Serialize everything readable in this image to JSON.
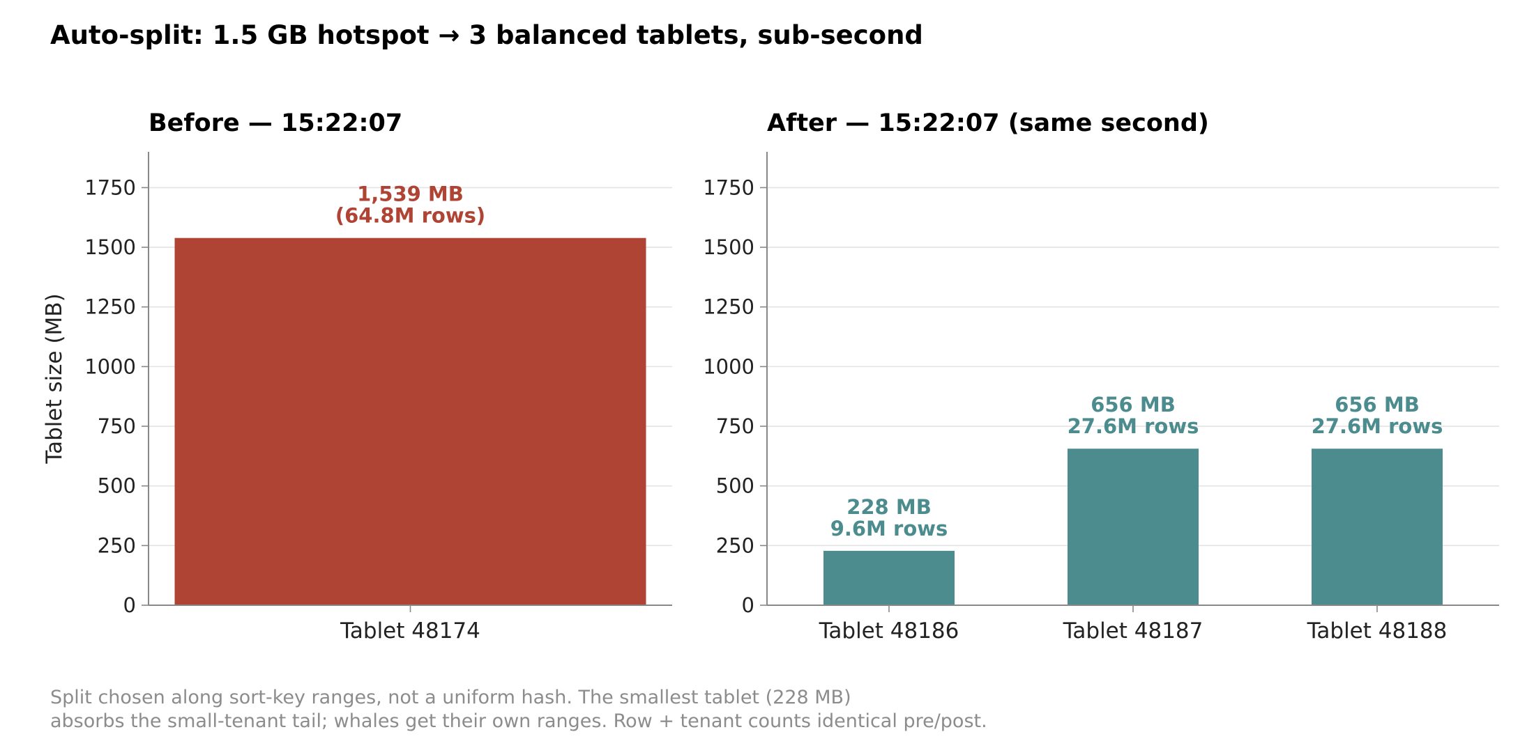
{
  "title": "Auto-split: 1.5 GB hotspot → 3 balanced tablets, sub-second",
  "footnote": [
    "Split chosen along sort-key ranges, not a uniform hash. The smallest tablet (228 MB)",
    "absorbs the small-tenant tail; whales get their own ranges. Row + tenant counts identical pre/post."
  ],
  "colors": {
    "before": "#b04434",
    "after": "#4c8c8e",
    "grid": "#e3e3e3",
    "axis": "#888888",
    "footnote": "#8c8c8c"
  },
  "chart_data": [
    {
      "type": "bar",
      "title": "Before — 15:22:07",
      "ylabel": "Tablet size (MB)",
      "ylim": [
        0,
        1900
      ],
      "yticks": [
        0,
        250,
        500,
        750,
        1000,
        1250,
        1500,
        1750
      ],
      "grid": true,
      "categories": [
        "Tablet 48174"
      ],
      "values": [
        1539
      ],
      "labels": [
        [
          "1,539 MB",
          "(64.8M rows)"
        ]
      ],
      "color": "#b04434"
    },
    {
      "type": "bar",
      "title": "After — 15:22:07 (same second)",
      "ylabel": "",
      "ylim": [
        0,
        1900
      ],
      "yticks": [
        0,
        250,
        500,
        750,
        1000,
        1250,
        1500,
        1750
      ],
      "grid": true,
      "categories": [
        "Tablet 48186",
        "Tablet 48187",
        "Tablet 48188"
      ],
      "values": [
        228,
        656,
        656
      ],
      "labels": [
        [
          "228 MB",
          "9.6M rows"
        ],
        [
          "656 MB",
          "27.6M rows"
        ],
        [
          "656 MB",
          "27.6M rows"
        ]
      ],
      "color": "#4c8c8e"
    }
  ]
}
